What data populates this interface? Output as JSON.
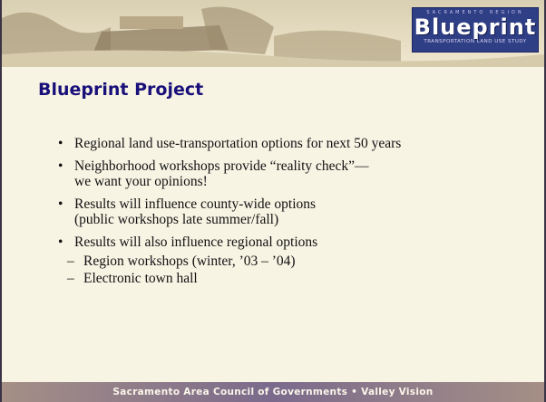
{
  "header": {
    "logo": {
      "top": "SACRAMENTO REGION",
      "name": "Blueprint",
      "tagline": "TRANSPORTATION LAND USE STUDY"
    }
  },
  "slide": {
    "title": "Blueprint Project",
    "bullets": [
      {
        "lines": [
          "Regional land use-transportation options for next 50 years"
        ]
      },
      {
        "lines": [
          "Neighborhood workshops provide “reality check”—",
          "we want your opinions!"
        ]
      },
      {
        "lines": [
          "Results will influence county-wide options",
          "(public workshops late summer/fall)"
        ]
      },
      {
        "lines": [
          "Results will also influence regional options"
        ],
        "sub": [
          "Region workshops (winter, ’03 – ’04)",
          "Electronic town hall"
        ]
      }
    ]
  },
  "footer": "Sacramento Area Council of Governments  • Valley Vision"
}
